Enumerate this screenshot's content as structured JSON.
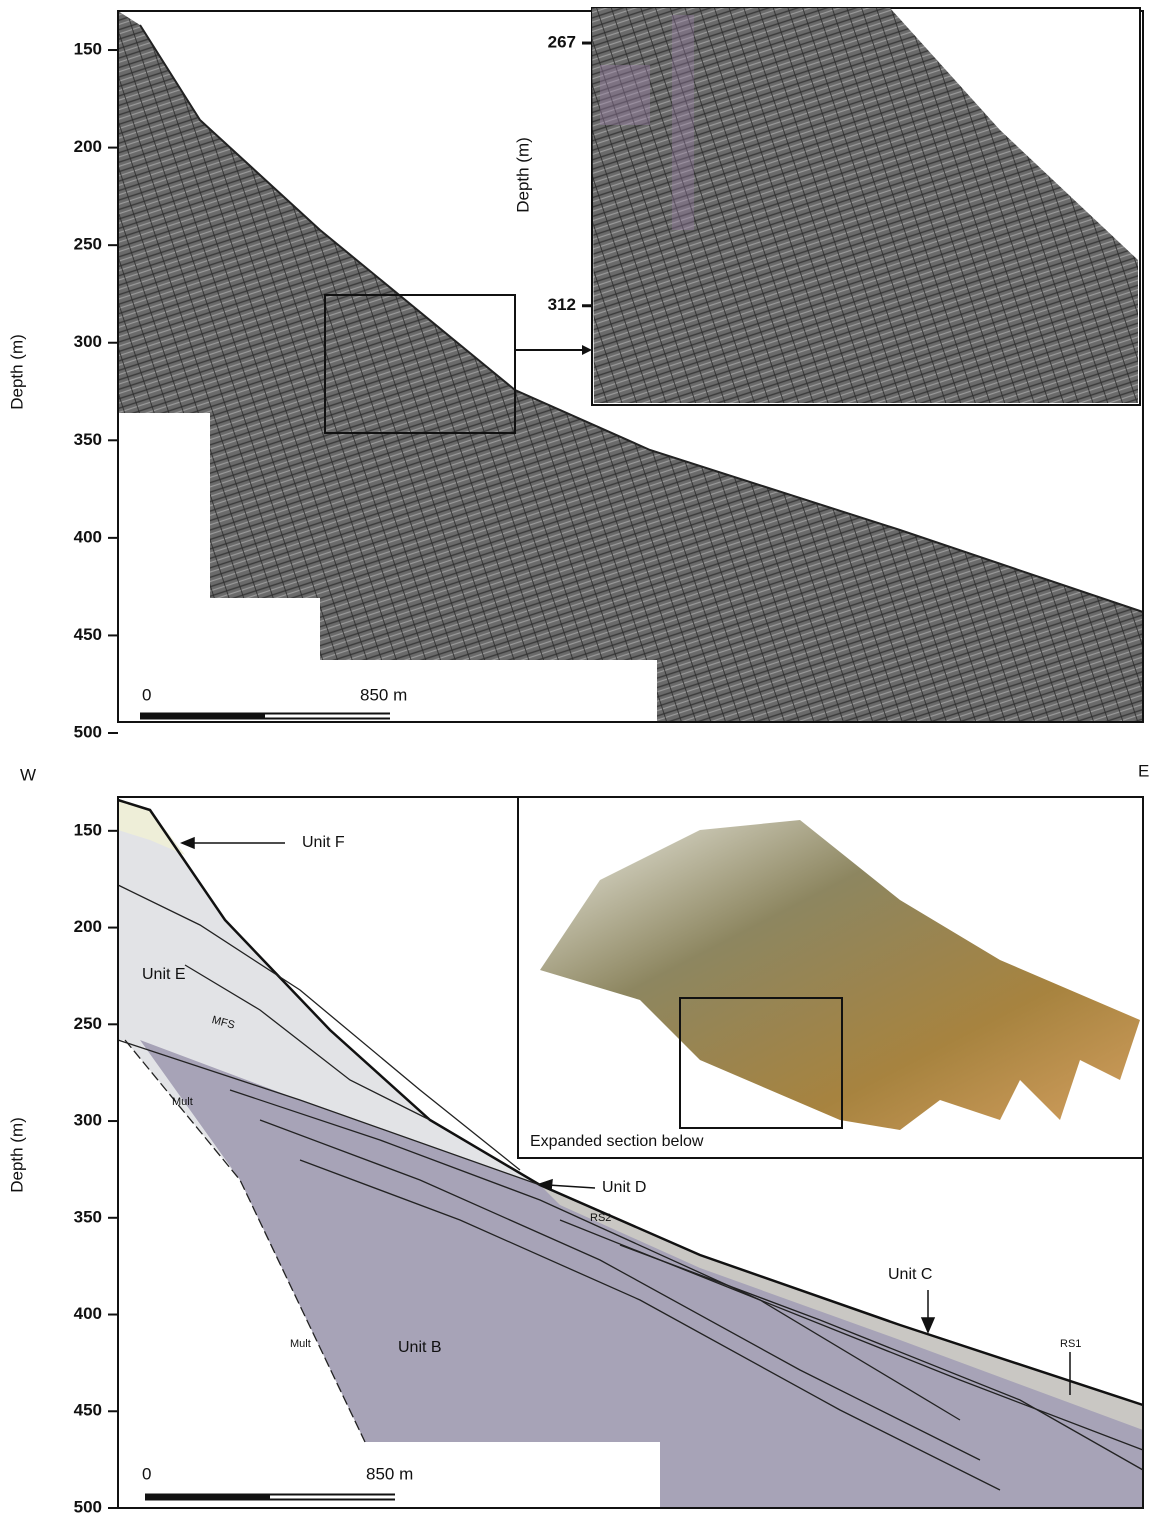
{
  "panels": [
    {
      "y_label": "Depth (m)",
      "ylim": [
        130,
        500
      ],
      "yticks": [
        150,
        200,
        250,
        300,
        350,
        400,
        450,
        500
      ],
      "scale_bar": {
        "start": "0",
        "end": "850 m"
      },
      "inset": {
        "y_label": "Depth (m)",
        "ylim": [
          261,
          329
        ],
        "yticks": [
          267,
          312
        ]
      }
    },
    {
      "y_label": "Depth (m)",
      "ylim": [
        132,
        500
      ],
      "yticks": [
        150,
        200,
        250,
        300,
        350,
        400,
        450,
        500
      ],
      "scale_bar": {
        "start": "0",
        "end": "850 m"
      },
      "west_label": "W",
      "east_label": "E",
      "annotations": [
        "Unit F",
        "Unit E",
        "MFS",
        "Mult",
        "Mult",
        "Unit B",
        "Unit D",
        "RS2",
        "Unit C",
        "RS1"
      ],
      "inset_caption": "Expanded section below"
    }
  ]
}
